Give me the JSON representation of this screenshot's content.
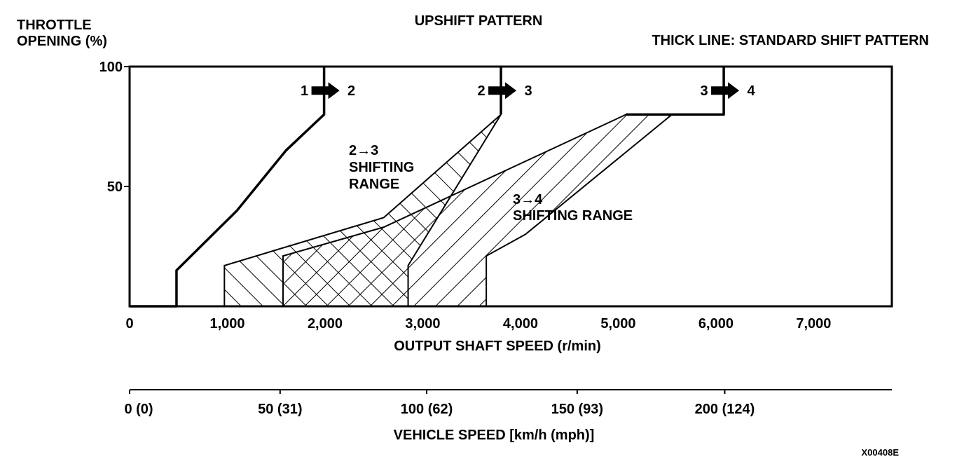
{
  "chart_data": {
    "type": "line",
    "title": "UPSHIFT PATTERN",
    "ylabel_lines": [
      "THROTTLE",
      "OPENING (%)"
    ],
    "xlabel": "OUTPUT SHAFT SPEED (r/min)",
    "x2label": "VEHICLE SPEED [km/h (mph)]",
    "legend_note": "THICK LINE: STANDARD SHIFT PATTERN",
    "figure_code": "X00408E",
    "xlim": [
      0,
      7800
    ],
    "ylim": [
      0,
      100
    ],
    "x_ticks": [
      {
        "value": 0,
        "label": "0"
      },
      {
        "value": 1000,
        "label": "1,000"
      },
      {
        "value": 2000,
        "label": "2,000"
      },
      {
        "value": 3000,
        "label": "3,000"
      },
      {
        "value": 4000,
        "label": "4,000"
      },
      {
        "value": 5000,
        "label": "5,000"
      },
      {
        "value": 6000,
        "label": "6,000"
      },
      {
        "value": 7000,
        "label": "7,000"
      }
    ],
    "y_ticks": [
      {
        "value": 50,
        "label": "50"
      },
      {
        "value": 100,
        "label": "100"
      }
    ],
    "vehicle_ticks": [
      {
        "value": 0,
        "label": "0 (0)"
      },
      {
        "value": 1540,
        "label": "50 (31)"
      },
      {
        "value": 3040,
        "label": "100 (62)"
      },
      {
        "value": 4580,
        "label": "150 (93)"
      },
      {
        "value": 6090,
        "label": "200 (124)"
      }
    ],
    "series": [
      {
        "name": "1→2",
        "points": [
          [
            0,
            0
          ],
          [
            480,
            0
          ],
          [
            480,
            15
          ],
          [
            1100,
            40
          ],
          [
            1600,
            65
          ],
          [
            1990,
            80
          ],
          [
            1990,
            100
          ]
        ]
      },
      {
        "name": "2→3",
        "points": [
          [
            3800,
            100
          ],
          [
            3800,
            80
          ]
        ]
      },
      {
        "name": "3→4",
        "points": [
          [
            6080,
            100
          ],
          [
            6080,
            80
          ],
          [
            5080,
            80
          ]
        ]
      }
    ],
    "ranges": [
      {
        "name": "2→3 SHIFTING RANGE",
        "label_lines": [
          "2→3",
          "SHIFTING",
          "RANGE"
        ],
        "polygon": [
          [
            970,
            0
          ],
          [
            970,
            17
          ],
          [
            2600,
            37
          ],
          [
            3800,
            80
          ],
          [
            2850,
            17
          ],
          [
            2850,
            0
          ]
        ]
      },
      {
        "name": "3→4 SHIFTING RANGE",
        "label_lines": [
          "3→4",
          "SHIFTING RANGE"
        ],
        "polygon": [
          [
            1570,
            0
          ],
          [
            1570,
            21
          ],
          [
            2600,
            33
          ],
          [
            5080,
            80
          ],
          [
            5550,
            80
          ],
          [
            4050,
            30
          ],
          [
            3650,
            21
          ],
          [
            3650,
            0
          ]
        ]
      }
    ],
    "shift_markers": [
      {
        "from": "1",
        "to": "2",
        "x": 1990,
        "y": 90
      },
      {
        "from": "2",
        "to": "3",
        "x": 3800,
        "y": 90
      },
      {
        "from": "3",
        "to": "4",
        "x": 6080,
        "y": 90
      }
    ],
    "grid": false
  }
}
